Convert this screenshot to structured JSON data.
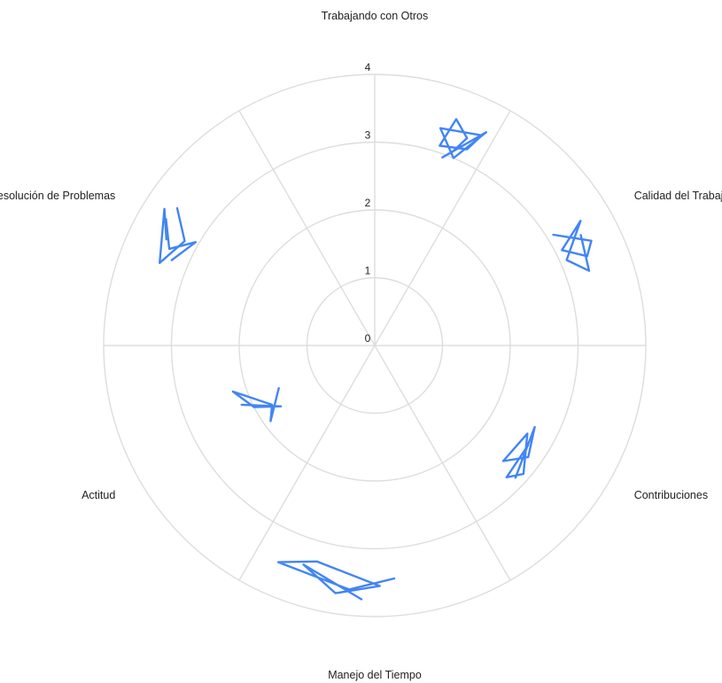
{
  "chart_data": {
    "type": "radar",
    "title": "",
    "axes": [
      "Trabajando con Otros",
      "Calidad del Trabajo",
      "Contribuciones",
      "Manejo del Tiempo",
      "Actitud",
      "Resolución de Problemas"
    ],
    "radial_ticks": [
      0,
      1,
      2,
      3,
      4
    ],
    "rlim": [
      0,
      4
    ],
    "grid": true,
    "legend": "none",
    "series_color": "#4285f4",
    "strokes": [
      {
        "axis": "Trabajando con Otros",
        "points": [
          [
            0.33,
            2.95
          ],
          [
            0.46,
            3.55
          ],
          [
            0.38,
            3.0
          ],
          [
            0.28,
            3.35
          ],
          [
            0.45,
            3.48
          ],
          [
            0.42,
            3.2
          ],
          [
            0.3,
            3.1
          ],
          [
            0.33,
            3.55
          ],
          [
            0.4,
            3.35
          ],
          [
            0.36,
            3.05
          ]
        ]
      },
      {
        "axis": "Calidad del Trabajo",
        "points": [
          [
            0.97,
            3.1
          ],
          [
            1.07,
            3.55
          ],
          [
            1.12,
            3.4
          ],
          [
            1.05,
            3.1
          ],
          [
            0.98,
            3.55
          ],
          [
            1.1,
            3.1
          ],
          [
            1.18,
            3.35
          ],
          [
            1.03,
            3.45
          ]
        ]
      },
      {
        "axis": "Contribuciones",
        "points": [
          [
            2.05,
            2.7
          ],
          [
            2.25,
            2.75
          ],
          [
            2.18,
            2.9
          ],
          [
            2.0,
            2.6
          ],
          [
            2.2,
            2.55
          ],
          [
            2.1,
            2.8
          ],
          [
            1.95,
            2.65
          ],
          [
            2.22,
            2.85
          ]
        ]
      },
      {
        "axis": "Manejo del Tiempo",
        "points": [
          [
            3.05,
            3.75
          ],
          [
            3.3,
            3.4
          ],
          [
            3.15,
            3.7
          ],
          [
            2.98,
            3.55
          ],
          [
            3.25,
            3.3
          ],
          [
            3.4,
            3.5
          ],
          [
            3.1,
            3.62
          ],
          [
            2.92,
            3.45
          ]
        ]
      },
      {
        "axis": "Actitud",
        "points": [
          [
            4.1,
            2.15
          ],
          [
            3.95,
            1.65
          ],
          [
            4.05,
            2.0
          ],
          [
            4.2,
            2.2
          ],
          [
            4.0,
            1.75
          ],
          [
            3.9,
            1.9
          ],
          [
            4.1,
            1.55
          ]
        ]
      },
      {
        "axis": "Resolución de Problemas",
        "points": [
          [
            4.88,
            3.25
          ],
          [
            5.0,
            3.05
          ],
          [
            4.92,
            3.35
          ],
          [
            5.02,
            3.6
          ],
          [
            4.95,
            3.45
          ],
          [
            5.05,
            3.7
          ],
          [
            4.85,
            3.4
          ],
          [
            4.98,
            3.2
          ],
          [
            5.08,
            3.55
          ]
        ]
      }
    ]
  }
}
